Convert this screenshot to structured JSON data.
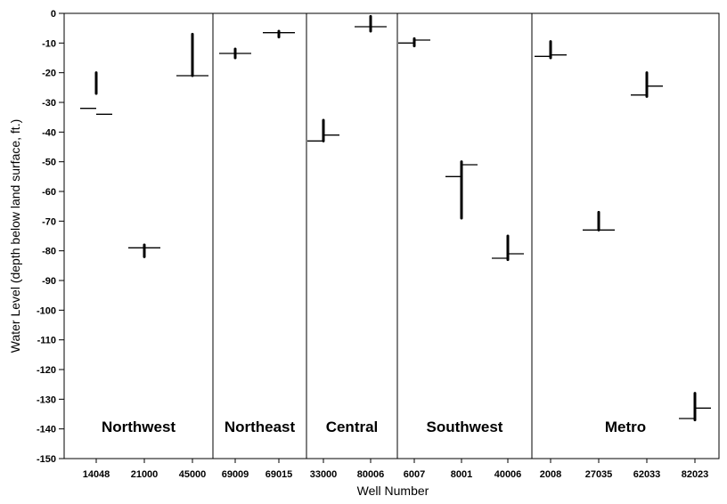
{
  "chart_data": {
    "type": "range",
    "xlabel": "Well Number",
    "ylabel": "Water Level (depth below land surface, ft.)",
    "ylim": [
      -150,
      0
    ],
    "yticks": [
      0,
      -10,
      -20,
      -30,
      -40,
      -50,
      -60,
      -70,
      -80,
      -90,
      -100,
      -110,
      -120,
      -130,
      -140,
      -150
    ],
    "grid": false,
    "categories": [
      "14048",
      "21000",
      "45000",
      "69009",
      "69015",
      "33000",
      "80006",
      "6007",
      "8001",
      "40006",
      "2008",
      "27035",
      "62033",
      "82023"
    ],
    "regions": [
      {
        "name": "Northwest",
        "wells": [
          "14048",
          "21000",
          "45000"
        ]
      },
      {
        "name": "Northeast",
        "wells": [
          "69009",
          "69015"
        ]
      },
      {
        "name": "Central",
        "wells": [
          "33000",
          "80006"
        ]
      },
      {
        "name": "Southwest",
        "wells": [
          "6007",
          "8001",
          "40006"
        ]
      },
      {
        "name": "Metro",
        "wells": [
          "2008",
          "27035",
          "62033",
          "82023"
        ]
      }
    ],
    "series": [
      {
        "well": "14048",
        "range": [
          -27,
          -20
        ],
        "level_a": -32,
        "level_b": -34
      },
      {
        "well": "21000",
        "range": [
          -82,
          -78
        ],
        "level_a": -79,
        "level_b": -79
      },
      {
        "well": "45000",
        "range": [
          -21,
          -7
        ],
        "level_a": -21,
        "level_b": -21
      },
      {
        "well": "69009",
        "range": [
          -15,
          -12
        ],
        "level_a": -13.5,
        "level_b": -13.5
      },
      {
        "well": "69015",
        "range": [
          -8,
          -6
        ],
        "level_a": -6.5,
        "level_b": -6.5
      },
      {
        "well": "33000",
        "range": [
          -43,
          -36
        ],
        "level_a": -43,
        "level_b": -41
      },
      {
        "well": "80006",
        "range": [
          -6,
          -1
        ],
        "level_a": -4.5,
        "level_b": -4.5
      },
      {
        "well": "6007",
        "range": [
          -11,
          -8.5
        ],
        "level_a": -10,
        "level_b": -9
      },
      {
        "well": "8001",
        "range": [
          -69,
          -50
        ],
        "level_a": -55,
        "level_b": -51
      },
      {
        "well": "40006",
        "range": [
          -83,
          -75
        ],
        "level_a": -82.5,
        "level_b": -81
      },
      {
        "well": "2008",
        "range": [
          -15,
          -9.5
        ],
        "level_a": -14.5,
        "level_b": -14
      },
      {
        "well": "27035",
        "range": [
          -73,
          -67
        ],
        "level_a": -73,
        "level_b": -73
      },
      {
        "well": "62033",
        "range": [
          -28,
          -20
        ],
        "level_a": -27.5,
        "level_b": -24.5
      },
      {
        "well": "82023",
        "range": [
          -137,
          -128
        ],
        "level_a": -136.5,
        "level_b": -133
      }
    ]
  }
}
